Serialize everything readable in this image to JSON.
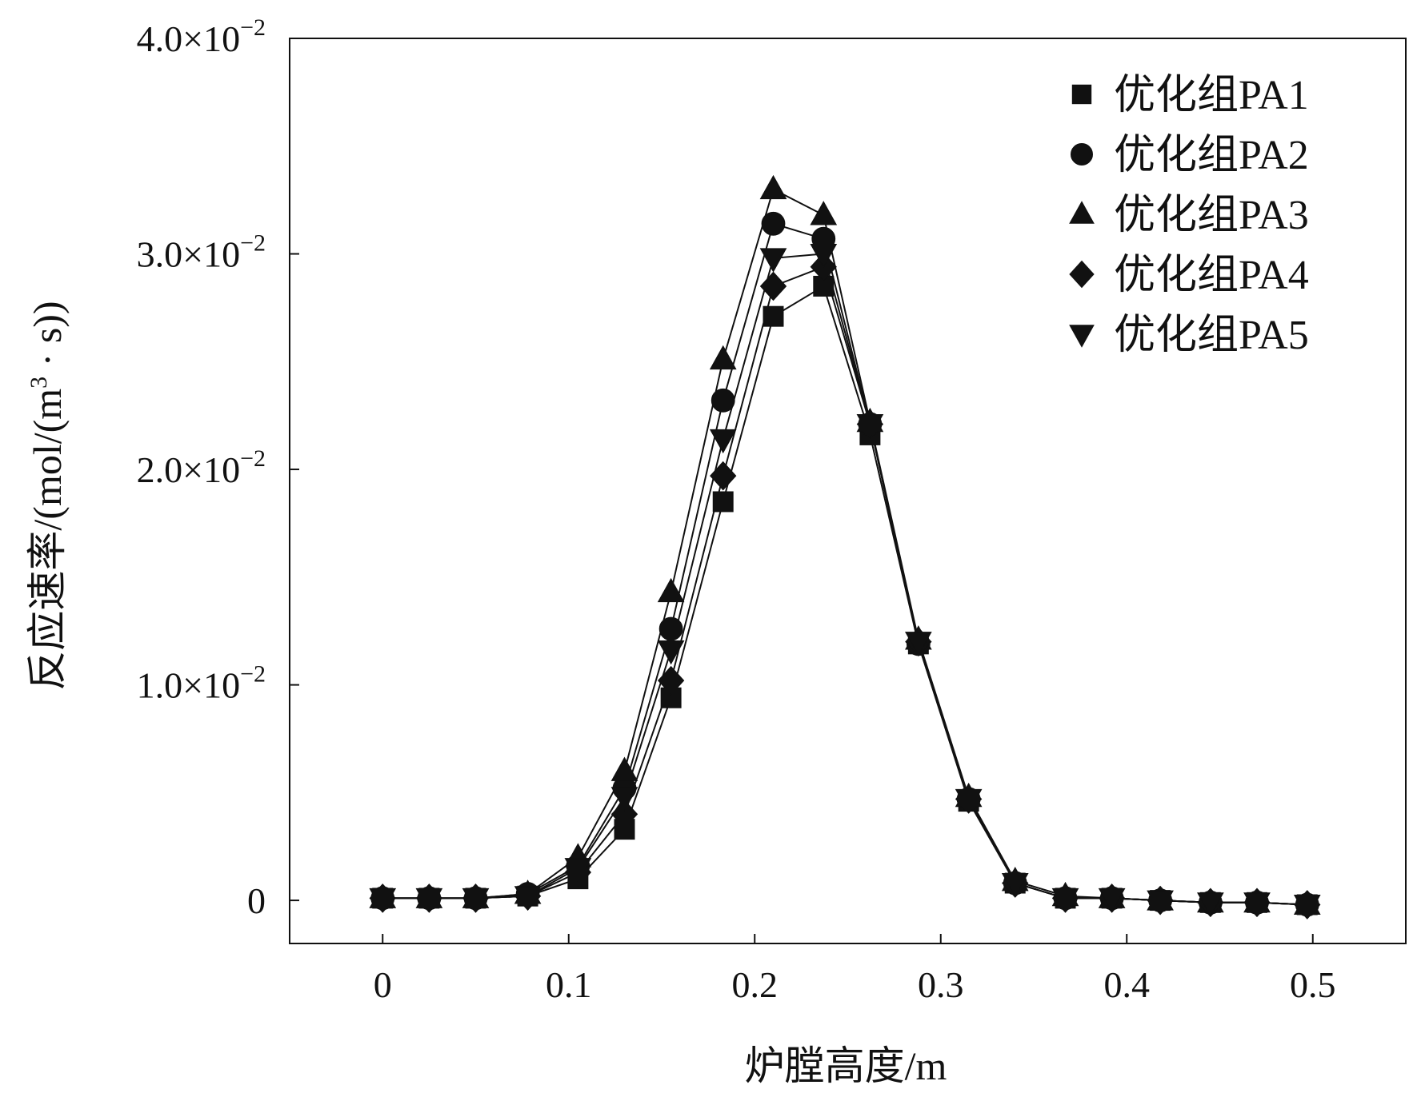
{
  "chart_data": {
    "type": "line",
    "xlabel": "炉膛高度/m",
    "ylabel": "反应速率/(mol/(m³ · s))",
    "xlim": [
      -0.05,
      0.55
    ],
    "ylim": [
      -0.002,
      0.04
    ],
    "xticks": [
      0,
      0.1,
      0.2,
      0.3,
      0.4,
      0.5
    ],
    "xtick_labels": [
      "0",
      "0.1",
      "0.2",
      "0.3",
      "0.4",
      "0.5"
    ],
    "yticks": [
      0,
      0.01,
      0.02,
      0.03,
      0.04
    ],
    "ytick_labels": [
      {
        "mantissa": "0",
        "exponent": ""
      },
      {
        "mantissa": "1.0×10",
        "exponent": "−2"
      },
      {
        "mantissa": "2.0×10",
        "exponent": "−2"
      },
      {
        "mantissa": "3.0×10",
        "exponent": "−2"
      },
      {
        "mantissa": "4.0×10",
        "exponent": "−2"
      }
    ],
    "grid": false,
    "legend_position": "top-right",
    "x": [
      0,
      0.025,
      0.05,
      0.078,
      0.105,
      0.13,
      0.155,
      0.183,
      0.21,
      0.237,
      0.262,
      0.288,
      0.315,
      0.34,
      0.367,
      0.392,
      0.418,
      0.445,
      0.47,
      0.497
    ],
    "series": [
      {
        "name": "优化组PA1",
        "marker": "square",
        "values": [
          0.0001,
          0.0001,
          0.0001,
          0.0002,
          0.001,
          0.0033,
          0.0094,
          0.0185,
          0.0271,
          0.0285,
          0.0216,
          0.0119,
          0.0046,
          0.0008,
          0.0001,
          0.0001,
          0.0,
          -0.0001,
          -0.0001,
          -0.0002
        ]
      },
      {
        "name": "优化组PA2",
        "marker": "circle",
        "values": [
          0.0001,
          0.0001,
          0.0001,
          0.0003,
          0.0016,
          0.0052,
          0.0126,
          0.0232,
          0.0314,
          0.0307,
          0.0221,
          0.0119,
          0.0047,
          0.0008,
          0.0001,
          0.0001,
          0.0,
          -0.0001,
          -0.0001,
          -0.0002
        ]
      },
      {
        "name": "优化组PA3",
        "marker": "triangle-up",
        "values": [
          0.0001,
          0.0001,
          0.0001,
          0.0003,
          0.002,
          0.006,
          0.0143,
          0.0251,
          0.033,
          0.0318,
          0.0222,
          0.0121,
          0.0048,
          0.0009,
          0.0002,
          0.0001,
          0.0,
          -0.0001,
          -0.0001,
          -0.0002
        ]
      },
      {
        "name": "优化组PA4",
        "marker": "diamond",
        "values": [
          0.0001,
          0.0001,
          0.0001,
          0.0002,
          0.0013,
          0.004,
          0.0102,
          0.0197,
          0.0285,
          0.0294,
          0.0221,
          0.012,
          0.0047,
          0.0008,
          0.0001,
          0.0001,
          0.0,
          -0.0001,
          -0.0001,
          -0.0002
        ]
      },
      {
        "name": "优化组PA5",
        "marker": "triangle-down",
        "values": [
          0.0001,
          0.0001,
          0.0001,
          0.0002,
          0.0015,
          0.0048,
          0.0116,
          0.0214,
          0.0298,
          0.03,
          0.0221,
          0.012,
          0.0047,
          0.0008,
          0.0001,
          0.0001,
          0.0,
          -0.0001,
          -0.0001,
          -0.0002
        ]
      }
    ]
  }
}
